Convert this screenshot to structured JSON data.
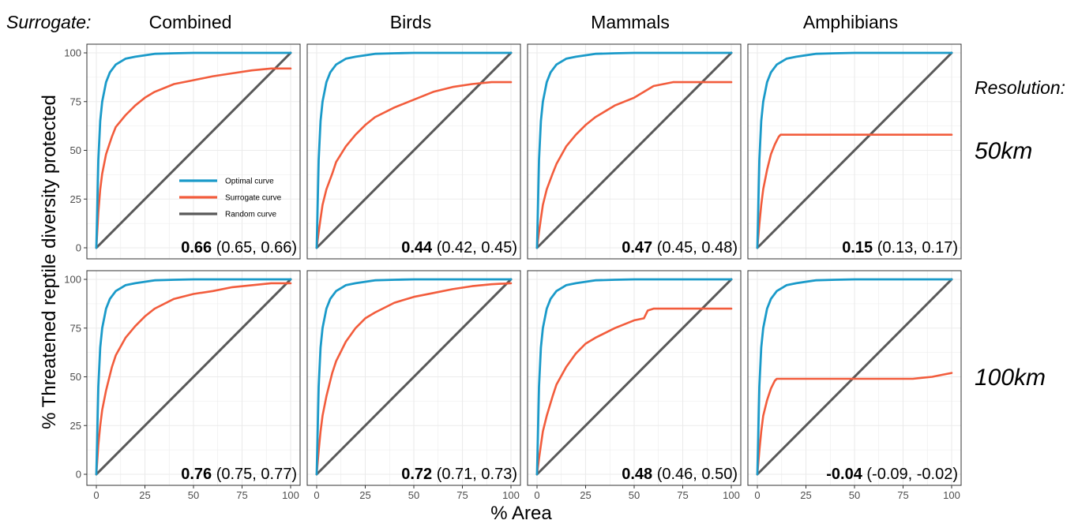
{
  "figure": {
    "surrogate_label": "Surrogate:",
    "resolution_label": "Resolution:",
    "columns": [
      "Combined",
      "Birds",
      "Mammals",
      "Amphibians"
    ],
    "rows": [
      "50km",
      "100km"
    ],
    "xlabel": "% Area",
    "ylabel": "% Threatened reptile diversity protected",
    "colors": {
      "optimal": "#1a9ac9",
      "surrogate": "#f25c3c",
      "random": "#595959",
      "grid": "#ebebeb",
      "border": "#333333"
    }
  },
  "chart_data": {
    "type": "line",
    "x_ticks": [
      "0",
      "25",
      "50",
      "75",
      "100"
    ],
    "y_ticks": [
      "0",
      "25",
      "50",
      "75",
      "100"
    ],
    "xlim": [
      0,
      100
    ],
    "ylim": [
      0,
      100
    ],
    "grid": true,
    "legend": {
      "placement": "inside first panel",
      "entries": [
        {
          "label": "Optimal curve",
          "series": "optimal"
        },
        {
          "label": "Surrogate curve",
          "series": "surrogate"
        },
        {
          "label": "Random curve",
          "series": "random"
        }
      ]
    },
    "panels": [
      {
        "row": "50km",
        "column": "Combined",
        "stat_bold": "0.66",
        "stat_ci": "(0.65, 0.66)",
        "optimal": {
          "x": [
            0,
            1,
            2,
            3,
            5,
            7,
            10,
            15,
            20,
            30,
            40,
            50,
            60,
            80,
            100
          ],
          "y": [
            0,
            45,
            65,
            75,
            85,
            90,
            94,
            97,
            98,
            99.5,
            99.8,
            100,
            100,
            100,
            100
          ]
        },
        "surrogate": {
          "x": [
            0,
            1,
            2,
            3,
            5,
            8,
            10,
            15,
            20,
            25,
            30,
            40,
            50,
            60,
            70,
            80,
            90,
            100
          ],
          "y": [
            0,
            18,
            30,
            38,
            48,
            57,
            62,
            68,
            73,
            77,
            80,
            84,
            86,
            88,
            89.5,
            91,
            92,
            92
          ]
        },
        "random": {
          "x": [
            0,
            100
          ],
          "y": [
            0,
            100
          ]
        }
      },
      {
        "row": "50km",
        "column": "Birds",
        "stat_bold": "0.44",
        "stat_ci": "(0.42, 0.45)",
        "optimal": {
          "x": [
            0,
            1,
            2,
            3,
            5,
            7,
            10,
            15,
            20,
            30,
            40,
            50,
            60,
            80,
            100
          ],
          "y": [
            0,
            45,
            65,
            75,
            85,
            90,
            94,
            97,
            98,
            99.5,
            99.8,
            100,
            100,
            100,
            100
          ]
        },
        "surrogate": {
          "x": [
            0,
            1,
            2,
            3,
            5,
            8,
            10,
            15,
            20,
            25,
            30,
            40,
            50,
            60,
            70,
            80,
            90,
            100
          ],
          "y": [
            0,
            8,
            15,
            22,
            30,
            38,
            44,
            52,
            58,
            63,
            67,
            72,
            76,
            80,
            82.5,
            84,
            85,
            85
          ]
        },
        "random": {
          "x": [
            0,
            100
          ],
          "y": [
            0,
            100
          ]
        }
      },
      {
        "row": "50km",
        "column": "Mammals",
        "stat_bold": "0.47",
        "stat_ci": "(0.45, 0.48)",
        "optimal": {
          "x": [
            0,
            1,
            2,
            3,
            5,
            7,
            10,
            15,
            20,
            30,
            40,
            50,
            60,
            80,
            100
          ],
          "y": [
            0,
            45,
            65,
            75,
            85,
            90,
            94,
            97,
            98,
            99.5,
            99.8,
            100,
            100,
            100,
            100
          ]
        },
        "surrogate": {
          "x": [
            0,
            1,
            2,
            3,
            5,
            8,
            10,
            15,
            20,
            25,
            30,
            40,
            50,
            55,
            60,
            70,
            80,
            90,
            100
          ],
          "y": [
            0,
            8,
            15,
            22,
            30,
            38,
            43,
            52,
            58,
            63,
            67,
            73,
            77,
            80,
            83,
            85,
            85,
            85,
            85
          ]
        },
        "random": {
          "x": [
            0,
            100
          ],
          "y": [
            0,
            100
          ]
        }
      },
      {
        "row": "50km",
        "column": "Amphibians",
        "stat_bold": "0.15",
        "stat_ci": "(0.13, 0.17)",
        "optimal": {
          "x": [
            0,
            1,
            2,
            3,
            5,
            7,
            10,
            15,
            20,
            30,
            40,
            50,
            60,
            80,
            100
          ],
          "y": [
            0,
            45,
            65,
            75,
            85,
            90,
            94,
            97,
            98,
            99.5,
            99.8,
            100,
            100,
            100,
            100
          ]
        },
        "surrogate": {
          "x": [
            0,
            1,
            2,
            3,
            5,
            7,
            9,
            10,
            11,
            12,
            20,
            40,
            60,
            80,
            100
          ],
          "y": [
            0,
            12,
            22,
            30,
            40,
            48,
            53,
            55,
            57,
            58,
            58,
            58,
            58,
            58,
            58
          ]
        },
        "random": {
          "x": [
            0,
            100
          ],
          "y": [
            0,
            100
          ]
        }
      },
      {
        "row": "100km",
        "column": "Combined",
        "stat_bold": "0.76",
        "stat_ci": "(0.75, 0.77)",
        "optimal": {
          "x": [
            0,
            1,
            2,
            3,
            5,
            7,
            10,
            15,
            20,
            30,
            40,
            50,
            60,
            80,
            100
          ],
          "y": [
            0,
            45,
            65,
            75,
            85,
            90,
            94,
            97,
            98,
            99.5,
            99.8,
            100,
            100,
            100,
            100
          ]
        },
        "surrogate": {
          "x": [
            0,
            1,
            2,
            3,
            5,
            8,
            10,
            15,
            20,
            25,
            30,
            40,
            50,
            60,
            70,
            80,
            90,
            100
          ],
          "y": [
            0,
            15,
            25,
            33,
            43,
            55,
            61,
            70,
            76,
            81,
            85,
            90,
            92.5,
            94,
            96,
            97,
            98,
            98
          ]
        },
        "random": {
          "x": [
            0,
            100
          ],
          "y": [
            0,
            100
          ]
        }
      },
      {
        "row": "100km",
        "column": "Birds",
        "stat_bold": "0.72",
        "stat_ci": "(0.71, 0.73)",
        "optimal": {
          "x": [
            0,
            1,
            2,
            3,
            5,
            7,
            10,
            15,
            20,
            30,
            40,
            50,
            60,
            80,
            100
          ],
          "y": [
            0,
            45,
            65,
            75,
            85,
            90,
            94,
            97,
            98,
            99.5,
            99.8,
            100,
            100,
            100,
            100
          ]
        },
        "surrogate": {
          "x": [
            0,
            1,
            2,
            3,
            5,
            8,
            10,
            15,
            20,
            25,
            30,
            40,
            50,
            60,
            70,
            80,
            90,
            100
          ],
          "y": [
            0,
            12,
            22,
            30,
            40,
            52,
            58,
            68,
            75,
            80,
            83,
            88,
            91,
            93,
            95,
            96.5,
            97.5,
            98
          ]
        },
        "random": {
          "x": [
            0,
            100
          ],
          "y": [
            0,
            100
          ]
        }
      },
      {
        "row": "100km",
        "column": "Mammals",
        "stat_bold": "0.48",
        "stat_ci": "(0.46, 0.50)",
        "optimal": {
          "x": [
            0,
            1,
            2,
            3,
            5,
            7,
            10,
            15,
            20,
            30,
            40,
            50,
            60,
            80,
            100
          ],
          "y": [
            0,
            45,
            65,
            75,
            85,
            90,
            94,
            97,
            98,
            99.5,
            99.8,
            100,
            100,
            100,
            100
          ]
        },
        "surrogate": {
          "x": [
            0,
            1,
            2,
            3,
            5,
            8,
            10,
            15,
            20,
            25,
            30,
            40,
            50,
            55,
            57,
            60,
            70,
            80,
            90,
            100
          ],
          "y": [
            0,
            8,
            15,
            22,
            30,
            40,
            46,
            55,
            62,
            67,
            70,
            75,
            79,
            80,
            84,
            85,
            85,
            85,
            85,
            85
          ]
        },
        "random": {
          "x": [
            0,
            100
          ],
          "y": [
            0,
            100
          ]
        }
      },
      {
        "row": "100km",
        "column": "Amphibians",
        "stat_bold": "-0.04",
        "stat_ci": "(-0.09, -0.02)",
        "optimal": {
          "x": [
            0,
            1,
            2,
            3,
            5,
            7,
            10,
            15,
            20,
            30,
            40,
            50,
            60,
            80,
            100
          ],
          "y": [
            0,
            45,
            65,
            75,
            85,
            90,
            94,
            97,
            98,
            99.5,
            99.8,
            100,
            100,
            100,
            100
          ]
        },
        "surrogate": {
          "x": [
            0,
            1,
            2,
            3,
            5,
            7,
            9,
            10,
            11,
            20,
            40,
            60,
            80,
            85,
            90,
            95,
            100
          ],
          "y": [
            0,
            12,
            22,
            30,
            38,
            44,
            48,
            49,
            49,
            49,
            49,
            49,
            49,
            49.5,
            50,
            51,
            52
          ]
        },
        "random": {
          "x": [
            0,
            100
          ],
          "y": [
            0,
            100
          ]
        }
      }
    ]
  }
}
